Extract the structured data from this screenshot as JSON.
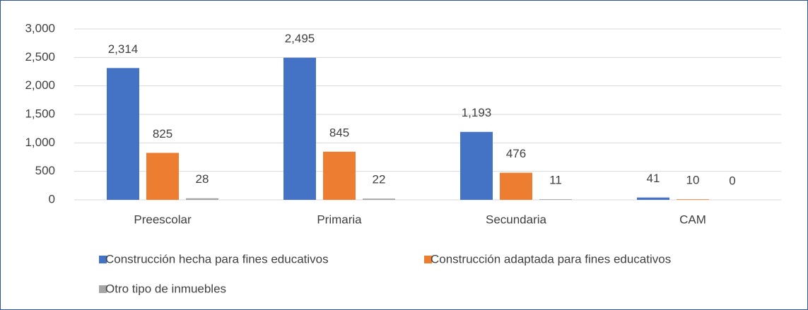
{
  "chart_data": {
    "type": "bar",
    "categories": [
      "Preescolar",
      "Primaria",
      "Secundaria",
      "CAM"
    ],
    "series": [
      {
        "name": "Construcción hecha para fines educativos",
        "color": "#4472c4",
        "values": [
          2314,
          2495,
          1193,
          41
        ],
        "value_labels": [
          "2,314",
          "2,495",
          "1,193",
          "41"
        ]
      },
      {
        "name": "Construcción adaptada para fines educativos",
        "color": "#ed7d31",
        "values": [
          825,
          845,
          476,
          10
        ],
        "value_labels": [
          "825",
          "845",
          "476",
          "10"
        ]
      },
      {
        "name": "Otro tipo de inmuebles",
        "color": "#a5a5a5",
        "values": [
          28,
          22,
          11,
          0
        ],
        "value_labels": [
          "28",
          "22",
          "11",
          "0"
        ]
      }
    ],
    "ylim": [
      0,
      3000
    ],
    "yticks": [
      0,
      500,
      {
        "value": 1000,
        "label": "1,000"
      },
      {
        "value": 1500,
        "label": "1,500"
      },
      {
        "value": 2000,
        "label": "2,000"
      },
      {
        "value": 2500,
        "label": "2,500"
      },
      {
        "value": 3000,
        "label": "3,000"
      }
    ],
    "grid": true,
    "legend": "bottom"
  }
}
